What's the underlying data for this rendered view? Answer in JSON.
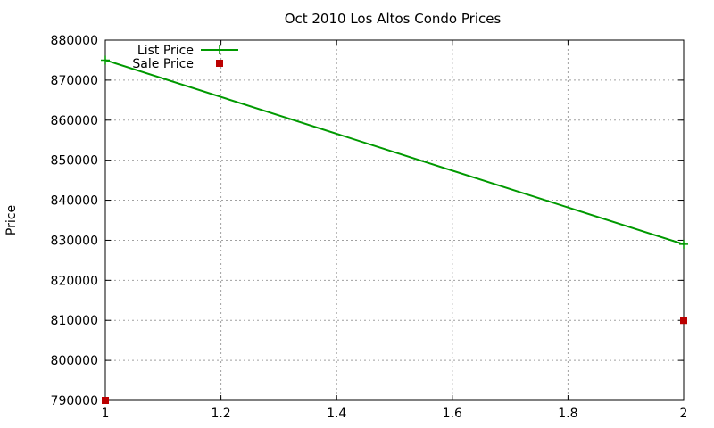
{
  "chart_data": {
    "type": "line",
    "title": "Oct 2010 Los Altos Condo Prices",
    "xlabel": "",
    "ylabel": "Price",
    "xlim": [
      1,
      2
    ],
    "ylim": [
      790000,
      880000
    ],
    "xticks": [
      "1",
      "1.2",
      "1.4",
      "1.6",
      "1.8",
      "2"
    ],
    "yticks": [
      "790000",
      "800000",
      "810000",
      "820000",
      "830000",
      "840000",
      "850000",
      "860000",
      "870000",
      "880000"
    ],
    "grid": true,
    "legend_position": "top-left",
    "series": [
      {
        "name": "List Price",
        "style": "line-with-plus-markers",
        "color": "#009900",
        "points": [
          {
            "x": 1,
            "y": 875000
          },
          {
            "x": 2,
            "y": 829000
          }
        ]
      },
      {
        "name": "Sale Price",
        "style": "square-markers",
        "color": "#bb0000",
        "points": [
          {
            "x": 1,
            "y": 790000
          },
          {
            "x": 2,
            "y": 810000
          }
        ]
      }
    ]
  }
}
